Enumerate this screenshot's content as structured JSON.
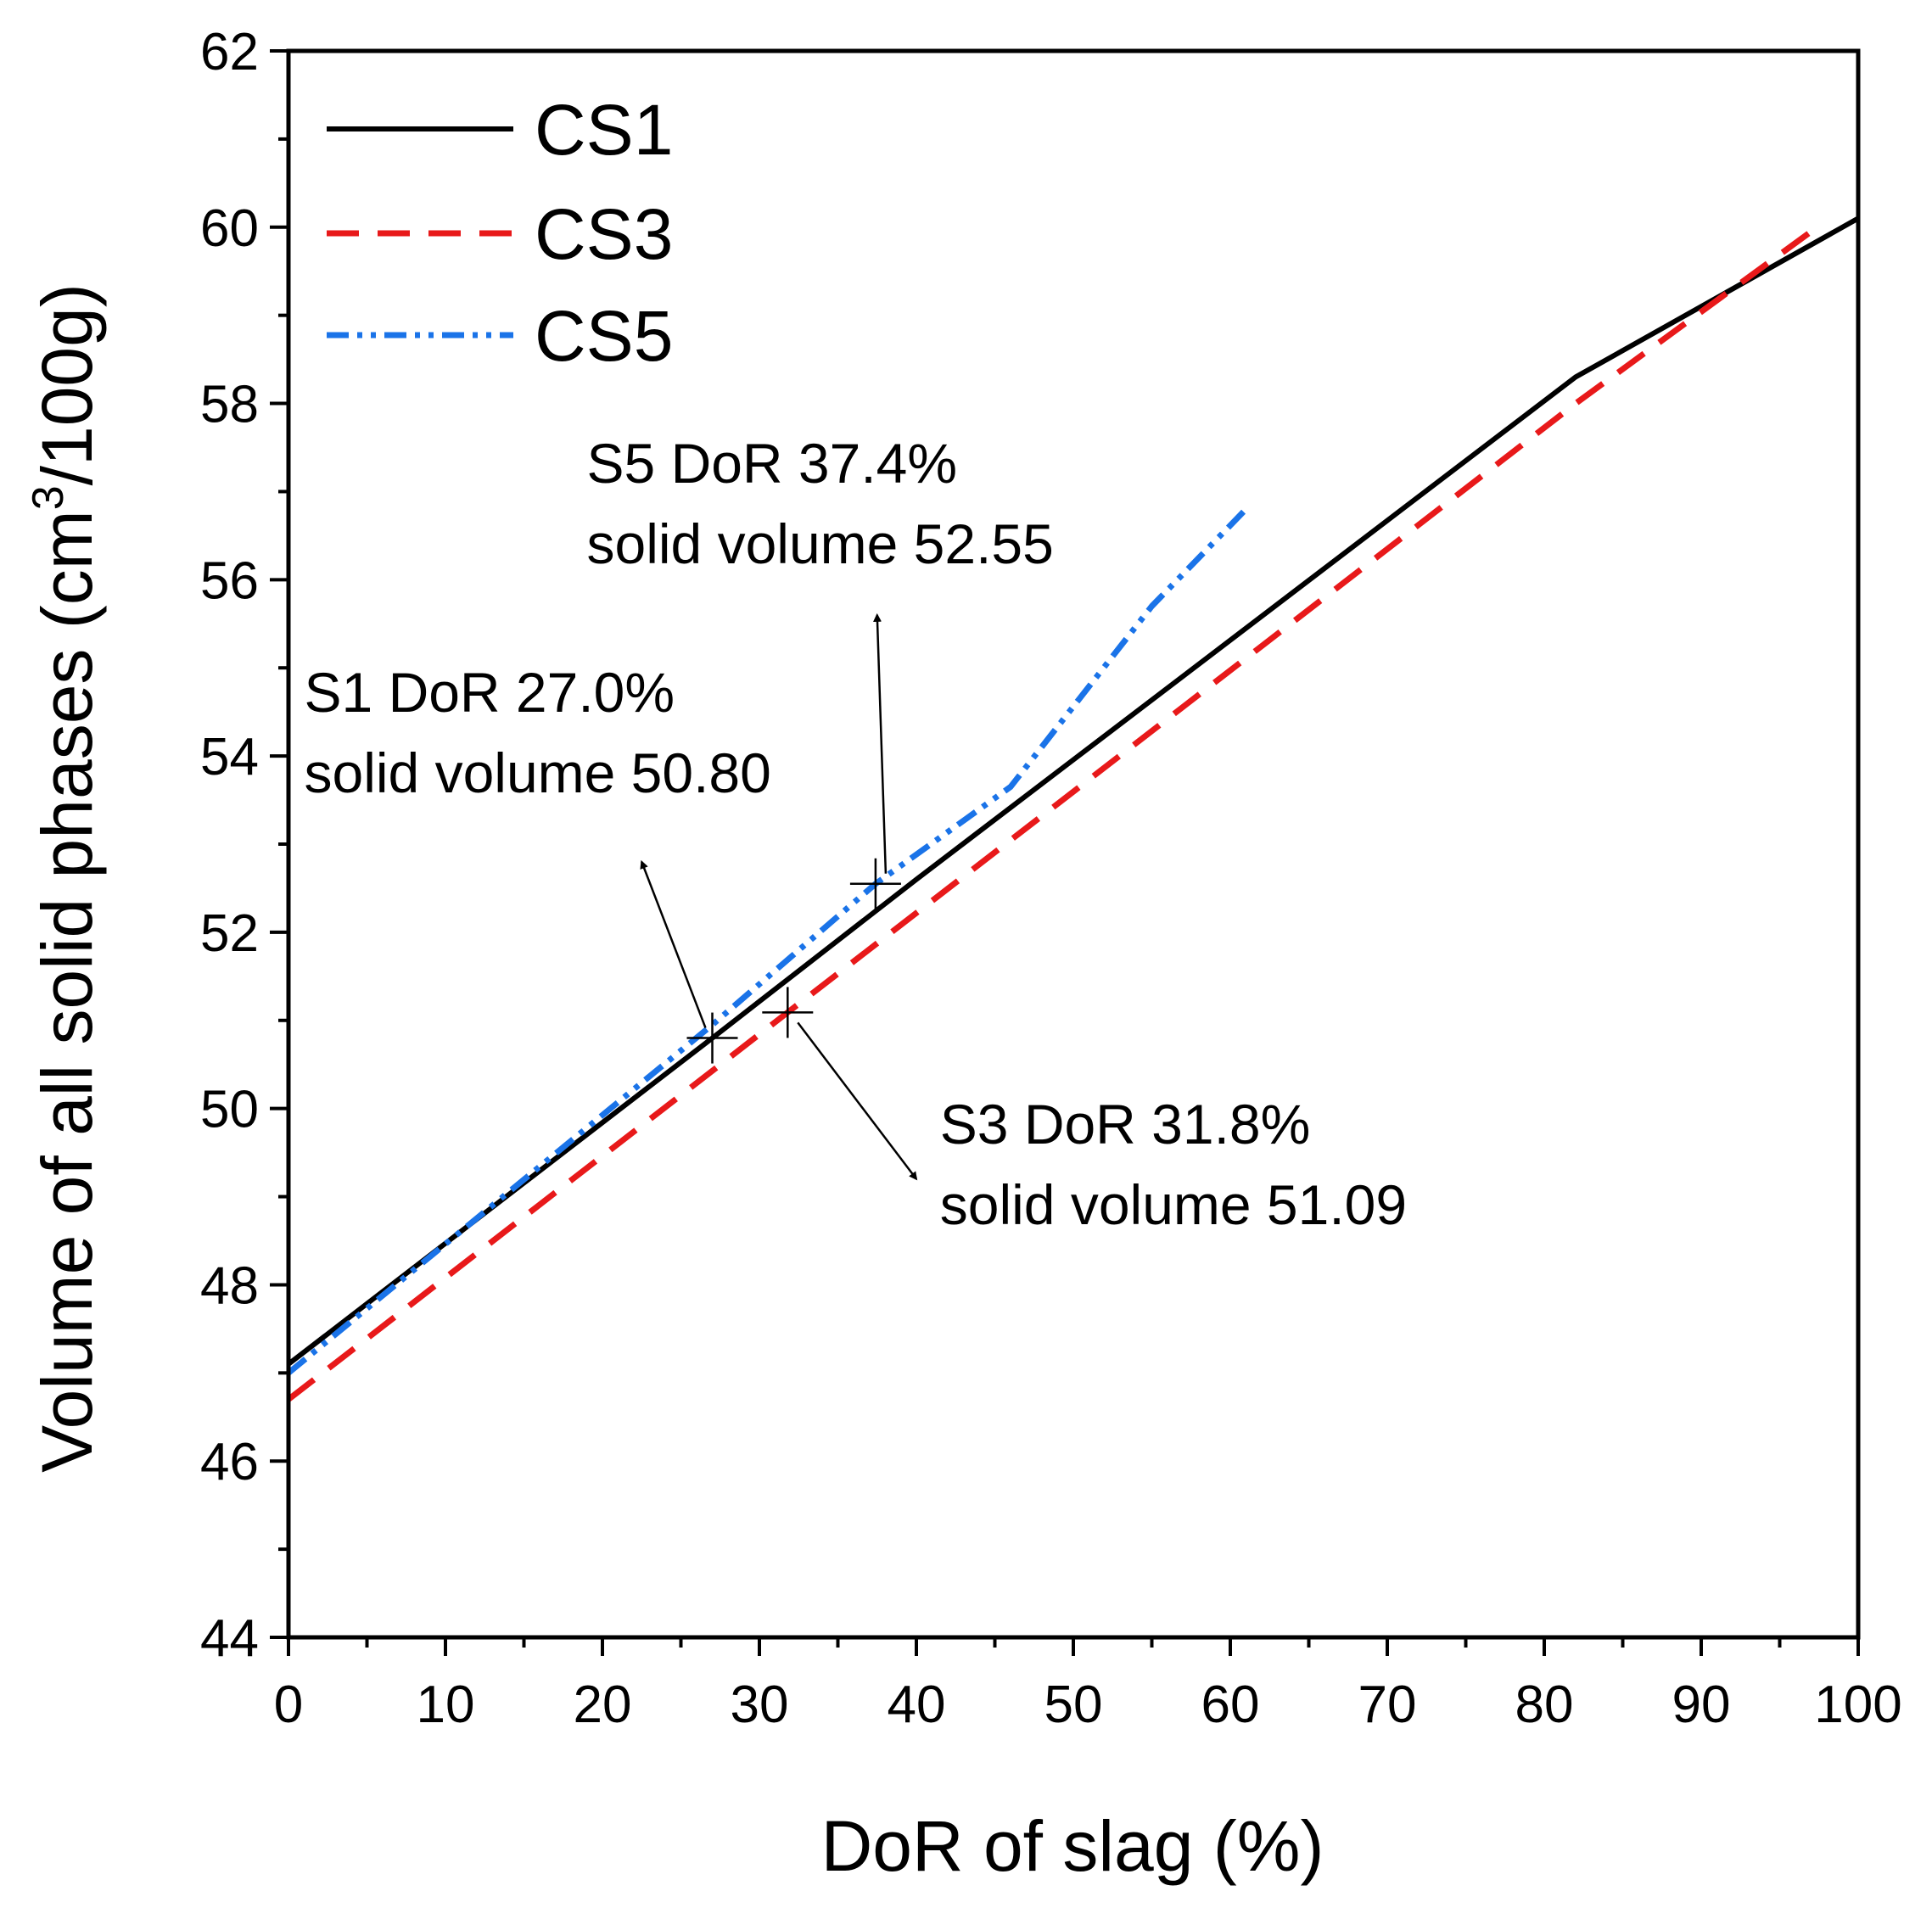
{
  "chart_data": {
    "type": "line",
    "title": "",
    "xlabel": "DoR of slag (%)",
    "ylabel_main": "Volume of all solid phases (cm",
    "ylabel_sup": "3",
    "ylabel_tail": "/100g)",
    "xlim": [
      0,
      100
    ],
    "ylim": [
      44,
      62
    ],
    "xticks": [
      0,
      10,
      20,
      30,
      40,
      50,
      60,
      70,
      80,
      90,
      100
    ],
    "yticks": [
      44,
      46,
      48,
      50,
      52,
      54,
      56,
      58,
      60,
      62
    ],
    "grid": false,
    "legend_position": "top-left",
    "series": [
      {
        "name": "CS1",
        "style": "solid",
        "color": "#000000",
        "points": [
          [
            0,
            47.1
          ],
          [
            27,
            50.8
          ],
          [
            40,
            52.6
          ],
          [
            82,
            58.3
          ],
          [
            100,
            60.1
          ]
        ]
      },
      {
        "name": "CS3",
        "style": "dashed",
        "color": "#e8191a",
        "points": [
          [
            0,
            46.7
          ],
          [
            31.8,
            51.09
          ],
          [
            82,
            58.0
          ],
          [
            97,
            59.95
          ]
        ]
      },
      {
        "name": "CS5",
        "style": "dashdotdot",
        "color": "#1a73e8",
        "points": [
          [
            0,
            47.0
          ],
          [
            27,
            50.95
          ],
          [
            37.4,
            52.55
          ],
          [
            46,
            53.65
          ],
          [
            55,
            55.7
          ],
          [
            61,
            56.8
          ]
        ]
      }
    ],
    "annotations": [
      {
        "id": "s1",
        "line1": "S1 DoR 27.0%",
        "line2": "solid volume 50.80",
        "point": [
          27.0,
          50.8
        ],
        "text_at": [
          1,
          54.5
        ],
        "arrow_to": [
          22.5,
          52.8
        ]
      },
      {
        "id": "s3",
        "line1": "S3 DoR 31.8%",
        "line2": "solid volume 51.09",
        "point": [
          31.8,
          51.09
        ],
        "text_at": [
          41.5,
          49.6
        ],
        "arrow_to": [
          40.0,
          49.2
        ]
      },
      {
        "id": "s5",
        "line1": "S5 DoR 37.4%",
        "line2": "solid volume 52.55",
        "point": [
          37.4,
          52.55
        ],
        "text_at": [
          19,
          57.1
        ],
        "arrow_to": [
          37.5,
          55.6
        ]
      }
    ]
  }
}
